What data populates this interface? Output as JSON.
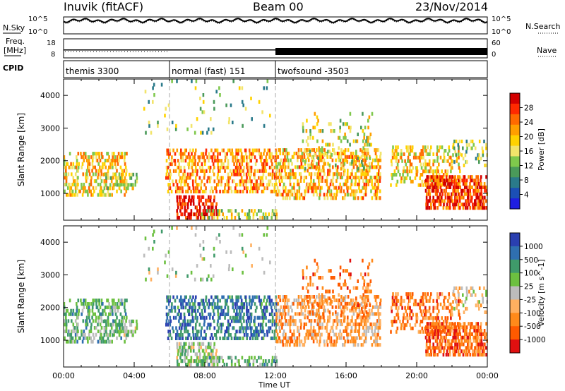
{
  "header": {
    "station": "Inuvik (fitACF)",
    "beam": "Beam 00",
    "date": "23/Nov/2014"
  },
  "side_labels": {
    "nsky": "N.Sky",
    "nsearch": "N.Search",
    "freq_line1": "Freq.",
    "freq_line2": "[MHz]",
    "nave": "Nave",
    "cpid": "CPID"
  },
  "noise_panel": {
    "left_ticks": [
      "10^5",
      "10^0"
    ],
    "right_ticks": [
      "10^5",
      "10^0"
    ]
  },
  "freq_panel": {
    "left_ticks": [
      "18",
      "8"
    ],
    "right_ticks": [
      "60",
      "0"
    ]
  },
  "cpid_segments": [
    {
      "label": "themis 3300",
      "start_h": 0,
      "end_h": 6
    },
    {
      "label": "normal (fast) 151",
      "start_h": 6,
      "end_h": 12
    },
    {
      "label": "twofsound -3503",
      "start_h": 12,
      "end_h": 24
    }
  ],
  "chart_data": [
    {
      "type": "heatmap",
      "name": "power",
      "xlabel": "Time UT",
      "ylabel": "Slant Range [km]",
      "xlim": [
        0,
        24
      ],
      "ylim": [
        180,
        4500
      ],
      "x_ticks": [
        "00:00",
        "04:00",
        "08:00",
        "12:00",
        "16:00",
        "20:00",
        "00:00"
      ],
      "y_ticks": [
        1000,
        2000,
        3000,
        4000
      ],
      "colorbar": {
        "label": "Power [dB]",
        "ticks": [
          "28",
          "24",
          "20",
          "16",
          "12",
          "8",
          "4"
        ],
        "colors": [
          "#d40000",
          "#ff2a00",
          "#ff6a00",
          "#ff9f00",
          "#ffd200",
          "#f2e46a",
          "#7fc84c",
          "#4a9a5a",
          "#2a7a8a",
          "#1b4fb5",
          "#1e1ee0"
        ]
      }
    },
    {
      "type": "heatmap",
      "name": "velocity",
      "xlabel": "Time UT",
      "ylabel": "Slant Range [km]",
      "xlim": [
        0,
        24
      ],
      "ylim": [
        180,
        4500
      ],
      "x_ticks": [
        "00:00",
        "04:00",
        "08:00",
        "12:00",
        "16:00",
        "20:00",
        "00:00"
      ],
      "y_ticks": [
        1000,
        2000,
        3000,
        4000
      ],
      "colorbar": {
        "label": "Velocity [m s^-1]",
        "ticks": [
          "1000",
          "500",
          "100",
          "25",
          "-25",
          "-100",
          "-500",
          "-1000"
        ],
        "colors": [
          "#2a3fb0",
          "#2f6fb0",
          "#3f9a6a",
          "#6cc040",
          "#bcbcbc",
          "#ffb060",
          "#ff8a1a",
          "#ff5a00",
          "#e01010"
        ]
      }
    }
  ]
}
